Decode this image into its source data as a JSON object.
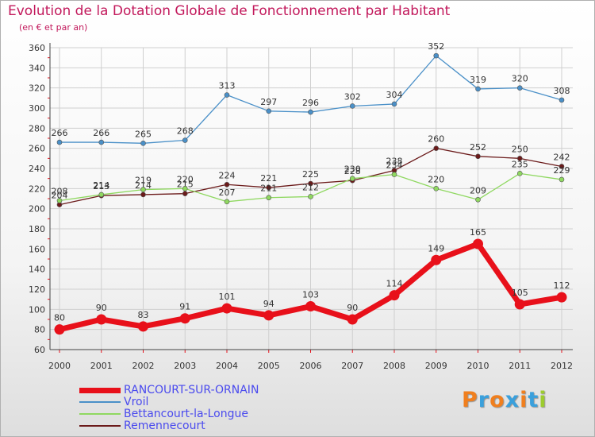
{
  "chart_data": {
    "type": "line",
    "title": "Evolution de la Dotation Globale de Fonctionnement par Habitant",
    "subtitle": "(en € et par an)",
    "x": [
      "2000",
      "2001",
      "2002",
      "2003",
      "2004",
      "2005",
      "2006",
      "2007",
      "2008",
      "2009",
      "2010",
      "2011",
      "2012"
    ],
    "ylim": [
      60,
      360
    ],
    "yticks": [
      60,
      80,
      100,
      120,
      140,
      160,
      180,
      200,
      220,
      240,
      260,
      280,
      300,
      320,
      340,
      360
    ],
    "grid": true,
    "legend_position": "bottom-left",
    "series": [
      {
        "name": "RANCOURT-SUR-ORNAIN",
        "color": "#e8101a",
        "values": [
          80,
          90,
          83,
          91,
          101,
          94,
          103,
          90,
          114,
          149,
          165,
          105,
          112
        ]
      },
      {
        "name": "Vroil",
        "color": "#4a90c8",
        "values": [
          266,
          266,
          265,
          268,
          313,
          297,
          296,
          302,
          304,
          352,
          319,
          320,
          308
        ]
      },
      {
        "name": "Bettancourt-la-Longue",
        "color": "#8fd860",
        "values": [
          208,
          214,
          219,
          220,
          207,
          211,
          212,
          230,
          234,
          220,
          209,
          235,
          229
        ]
      },
      {
        "name": "Remennecourt",
        "color": "#6b1a1a",
        "values": [
          204,
          213,
          214,
          215,
          224,
          221,
          225,
          228,
          238,
          260,
          252,
          250,
          242
        ]
      }
    ]
  },
  "logo": {
    "text": "Proxiti",
    "letters": [
      "P",
      "r",
      "o",
      "x",
      "i",
      "t",
      "i"
    ],
    "colors": [
      "#f07f1e",
      "#3aa0dc",
      "#f07f1e",
      "#3aa0dc",
      "#f07f1e",
      "#3aa0dc",
      "#9ccc2e"
    ]
  }
}
